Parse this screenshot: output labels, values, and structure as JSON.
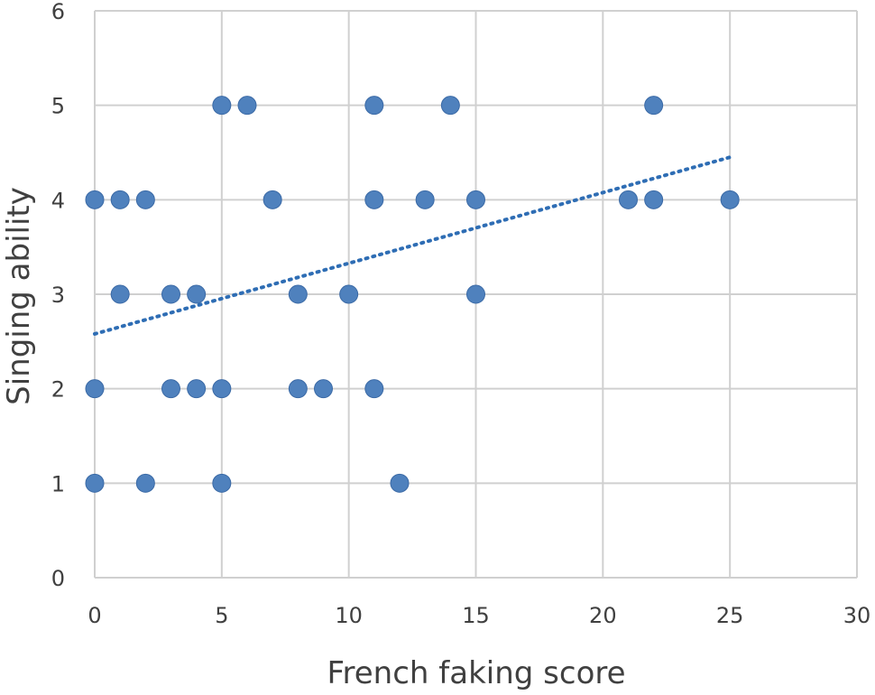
{
  "chart_data": {
    "type": "scatter",
    "title": "",
    "xlabel": "French faking score",
    "ylabel": "Singing ability",
    "xlim": [
      0,
      30
    ],
    "ylim": [
      0,
      6
    ],
    "xticks": [
      "0",
      "5",
      "10",
      "15",
      "20",
      "25",
      "30"
    ],
    "yticks": [
      "0",
      "1",
      "2",
      "3",
      "4",
      "5",
      "6"
    ],
    "grid": true,
    "legend": "none",
    "point_color": "#4f81bd",
    "trendline": {
      "style": "dotted",
      "color": "#2e6db4",
      "x": [
        0,
        25
      ],
      "y": [
        2.58,
        4.45
      ]
    },
    "series": [
      {
        "x": [
          5,
          6,
          11,
          14,
          22,
          0,
          1,
          2,
          7,
          11,
          13,
          15,
          21,
          22,
          25,
          1,
          3,
          4,
          8,
          10,
          15,
          0,
          3,
          4,
          5,
          8,
          9,
          11,
          0,
          2,
          5,
          12
        ],
        "y": [
          5,
          5,
          5,
          5,
          5,
          4,
          4,
          4,
          4,
          4,
          4,
          4,
          4,
          4,
          4,
          3,
          3,
          3,
          3,
          3,
          3,
          2,
          2,
          2,
          2,
          2,
          2,
          2,
          1,
          1,
          1,
          1
        ]
      }
    ]
  }
}
